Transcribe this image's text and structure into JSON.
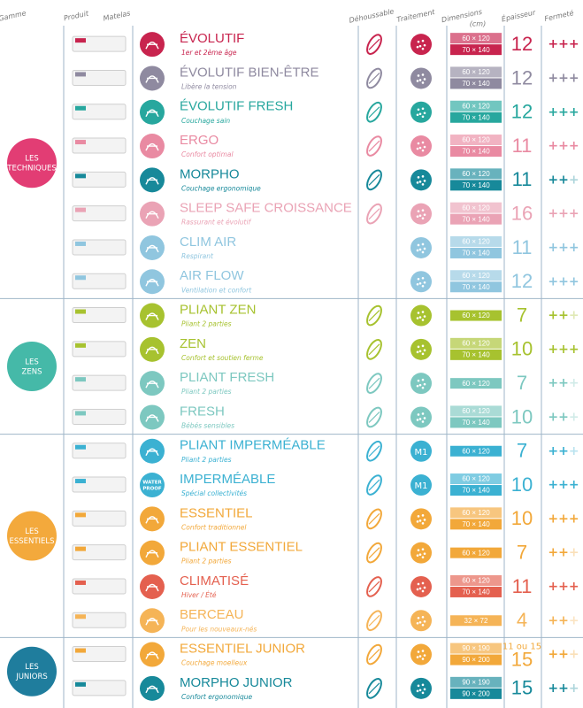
{
  "headers": [
    "Gamme",
    "Produit",
    "Matelas",
    "Déhoussable",
    "Traitement",
    "Dimensions",
    "Épaisseur",
    "Fermeté"
  ],
  "dimensions_unit": "(cm)",
  "groups": [
    {
      "label_lines": [
        "LES",
        "TECHNIQUES"
      ],
      "color": "#e23d74",
      "rows": [
        {
          "name": "ÉVOLUTIF",
          "subtitle": "1er et 2ème âge",
          "color": "#c8244e",
          "dehoussable": true,
          "treatment": true,
          "dimensions": [
            "60 × 120",
            "70 × 140"
          ],
          "thickness": 12,
          "firmness_on": "+++"
        },
        {
          "name": "ÉVOLUTIF BIEN-ÊTRE",
          "subtitle": "Libère la tension",
          "color": "#8f8aa0",
          "dehoussable": true,
          "treatment": true,
          "dimensions": [
            "60 × 120",
            "70 × 140"
          ],
          "thickness": 12,
          "firmness_on": "+++"
        },
        {
          "name": "ÉVOLUTIF FRESH",
          "subtitle": "Couchage sain",
          "color": "#27a79e",
          "dehoussable": true,
          "treatment": true,
          "dimensions": [
            "60 × 120",
            "70 × 140"
          ],
          "thickness": 12,
          "firmness_on": "+++"
        },
        {
          "name": "ERGO",
          "subtitle": "Confort optimal",
          "color": "#e98aa2",
          "dehoussable": true,
          "treatment": true,
          "dimensions": [
            "60 × 120",
            "70 × 140"
          ],
          "thickness": 11,
          "firmness_on": "+++"
        },
        {
          "name": "MORPHO",
          "subtitle": "Couchage ergonomique",
          "color": "#17899a",
          "dehoussable": true,
          "treatment": true,
          "dimensions": [
            "60 × 120",
            "70 × 140"
          ],
          "thickness": 11,
          "firmness_on": "++",
          "firmness_off": "+"
        },
        {
          "name": "SLEEP SAFE CROISSANCE",
          "subtitle": "Rassurant et évolutif",
          "color": "#eaa3b5",
          "dehoussable": true,
          "treatment": true,
          "dimensions": [
            "60 × 120",
            "70 × 140"
          ],
          "thickness": 16,
          "firmness_on": "+++"
        },
        {
          "name": "CLIM AIR",
          "subtitle": "Respirant",
          "color": "#90c6df",
          "dehoussable": false,
          "treatment": true,
          "dimensions": [
            "60 × 120",
            "70 × 140"
          ],
          "thickness": 11,
          "firmness_on": "+++"
        },
        {
          "name": "AIR FLOW",
          "subtitle": "Ventilation et confort",
          "color": "#90c6df",
          "dehoussable": false,
          "treatment": true,
          "dimensions": [
            "60 × 120",
            "70 × 140"
          ],
          "thickness": 12,
          "firmness_on": "+++"
        }
      ]
    },
    {
      "label_lines": [
        "LES",
        "ZENS"
      ],
      "color": "#45b9a8",
      "rows": [
        {
          "name": "PLIANT ZEN",
          "subtitle": "Pliant 2 parties",
          "color": "#a7c22f",
          "dehoussable": true,
          "treatment": true,
          "dimensions": [
            "60 × 120"
          ],
          "thickness": 7,
          "firmness_on": "++",
          "firmness_off": "+"
        },
        {
          "name": "ZEN",
          "subtitle": "Confort et soutien ferme",
          "color": "#a7c22f",
          "dehoussable": true,
          "treatment": true,
          "dimensions": [
            "60 × 120",
            "70 × 140"
          ],
          "thickness": 10,
          "firmness_on": "+++"
        },
        {
          "name": "PLIANT FRESH",
          "subtitle": "Pliant 2 parties",
          "color": "#7dc8c0",
          "dehoussable": true,
          "treatment": true,
          "dimensions": [
            "60 × 120"
          ],
          "thickness": 7,
          "firmness_on": "++",
          "firmness_off": "+"
        },
        {
          "name": "FRESH",
          "subtitle": "Bébés sensibles",
          "color": "#7dc8c0",
          "dehoussable": true,
          "treatment": true,
          "dimensions": [
            "60 × 120",
            "70 × 140"
          ],
          "thickness": 10,
          "firmness_on": "++",
          "firmness_off": "+"
        }
      ]
    },
    {
      "label_lines": [
        "LES",
        "ESSENTIELS"
      ],
      "color": "#f3a93c",
      "rows": [
        {
          "name": "PLIANT IMPERMÉABLE",
          "subtitle": "Pliant 2 parties",
          "color": "#3bb1d2",
          "dehoussable": true,
          "treatment": true,
          "treatment_label": "M1",
          "dimensions": [
            "60 × 120"
          ],
          "thickness": 7,
          "firmness_on": "++",
          "firmness_off": "+"
        },
        {
          "name": "IMPERMÉABLE",
          "subtitle": "Spécial collectivités",
          "color": "#3bb1d2",
          "icon_text": [
            "WATER",
            "PROOF"
          ],
          "dehoussable": true,
          "treatment": true,
          "treatment_label": "M1",
          "dimensions": [
            "60 × 120",
            "70 × 140"
          ],
          "thickness": 10,
          "firmness_on": "+++"
        },
        {
          "name": "ESSENTIEL",
          "subtitle": "Confort traditionnel",
          "color": "#f2a83a",
          "dehoussable": true,
          "treatment": true,
          "dimensions": [
            "60 × 120",
            "70 × 140"
          ],
          "thickness": 10,
          "firmness_on": "+++"
        },
        {
          "name": "PLIANT ESSENTIEL",
          "subtitle": "Pliant 2 parties",
          "color": "#f2a83a",
          "dehoussable": true,
          "treatment": true,
          "dimensions": [
            "60 × 120"
          ],
          "thickness": 7,
          "firmness_on": "++",
          "firmness_off": "+"
        },
        {
          "name": "CLIMATISÉ",
          "subtitle": "Hiver / Été",
          "color": "#e4604f",
          "dehoussable": true,
          "treatment": true,
          "dimensions": [
            "60 × 120",
            "70 × 140"
          ],
          "thickness": 11,
          "firmness_on": "+++"
        },
        {
          "name": "BERCEAU",
          "subtitle": "Pour les nouveaux-nés",
          "color": "#f5b457",
          "dehoussable": true,
          "treatment": true,
          "dimensions": [
            "32 × 72"
          ],
          "thickness": 4,
          "firmness_on": "++",
          "firmness_off": "+"
        }
      ]
    },
    {
      "label_lines": [
        "LES",
        "JUNIORS"
      ],
      "color": "#1f7d9d",
      "rows": [
        {
          "name": "ESSENTIEL JUNIOR",
          "subtitle": "Couchage moelleux",
          "color": "#f2a83a",
          "dehoussable": true,
          "treatment": true,
          "dimensions": [
            "90 × 190",
            "90 × 200"
          ],
          "thickness_note": "11 ou 15",
          "thickness": 15,
          "firmness_on": "++",
          "firmness_off": "+"
        },
        {
          "name": "MORPHO JUNIOR",
          "subtitle": "Confort ergonomique",
          "color": "#17899a",
          "dehoussable": true,
          "treatment": true,
          "dimensions": [
            "90 × 190",
            "90 × 200"
          ],
          "thickness": 15,
          "firmness_on": "++",
          "firmness_off": "+"
        }
      ]
    }
  ]
}
